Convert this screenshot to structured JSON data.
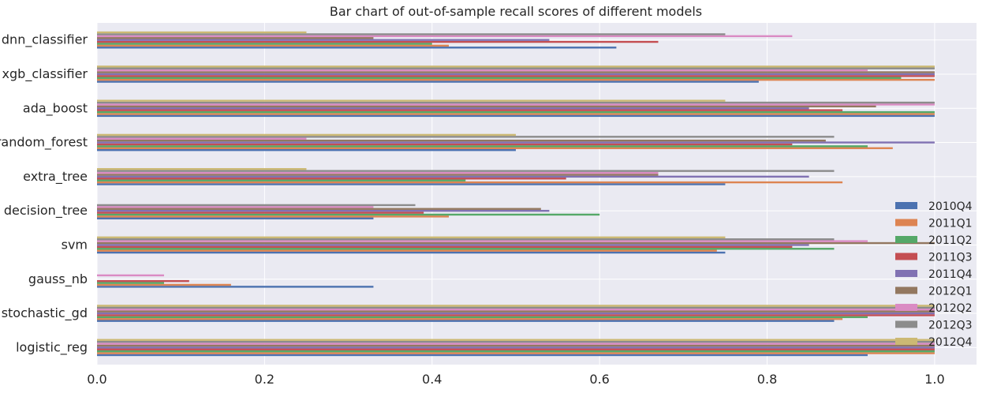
{
  "chart_data": {
    "type": "bar",
    "orientation": "horizontal",
    "title": "Bar chart of out-of-sample recall scores of different models",
    "xlabel": "",
    "ylabel": "",
    "xlim": [
      0,
      1.05
    ],
    "xticks": [
      0.0,
      0.2,
      0.4,
      0.6,
      0.8,
      1.0
    ],
    "xtick_labels": [
      "0.0",
      "0.2",
      "0.4",
      "0.6",
      "0.8",
      "1.0"
    ],
    "grid": true,
    "legend_position": "lower-right",
    "categories": [
      "logistic_reg",
      "stochastic_gd",
      "gauss_nb",
      "svm",
      "decision_tree",
      "extra_tree",
      "random_forest",
      "ada_boost",
      "xgb_classifier",
      "dnn_classifier"
    ],
    "series": [
      {
        "name": "2010Q4",
        "color": "#4c72b0",
        "values": [
          0.92,
          0.88,
          0.33,
          0.75,
          0.33,
          0.75,
          0.5,
          1.0,
          0.79,
          0.62
        ]
      },
      {
        "name": "2011Q1",
        "color": "#dd8452",
        "values": [
          1.0,
          0.89,
          0.16,
          0.74,
          0.42,
          0.89,
          0.95,
          1.0,
          1.0,
          0.42
        ]
      },
      {
        "name": "2011Q2",
        "color": "#55a868",
        "values": [
          1.0,
          0.92,
          0.08,
          0.88,
          0.6,
          0.44,
          0.92,
          1.0,
          0.96,
          0.4
        ]
      },
      {
        "name": "2011Q3",
        "color": "#c44e52",
        "values": [
          1.0,
          1.0,
          0.11,
          0.83,
          0.39,
          0.56,
          0.83,
          0.89,
          1.0,
          0.67
        ]
      },
      {
        "name": "2011Q4",
        "color": "#8172b3",
        "values": [
          1.0,
          1.0,
          0.0,
          0.85,
          0.54,
          0.85,
          1.0,
          0.85,
          1.0,
          0.54
        ]
      },
      {
        "name": "2012Q1",
        "color": "#937860",
        "values": [
          1.0,
          1.0,
          0.0,
          1.0,
          0.53,
          0.67,
          0.87,
          0.93,
          1.0,
          0.33
        ]
      },
      {
        "name": "2012Q2",
        "color": "#da8bc3",
        "values": [
          1.0,
          1.0,
          0.08,
          0.92,
          0.33,
          0.67,
          0.25,
          1.0,
          0.92,
          0.83
        ]
      },
      {
        "name": "2012Q3",
        "color": "#8c8c8c",
        "values": [
          1.0,
          1.0,
          0.0,
          0.88,
          0.38,
          0.88,
          0.88,
          1.0,
          1.0,
          0.75
        ]
      },
      {
        "name": "2012Q4",
        "color": "#ccb974",
        "values": [
          1.0,
          1.0,
          0.0,
          0.75,
          0.0,
          0.25,
          0.5,
          0.75,
          1.0,
          0.25
        ]
      }
    ]
  }
}
